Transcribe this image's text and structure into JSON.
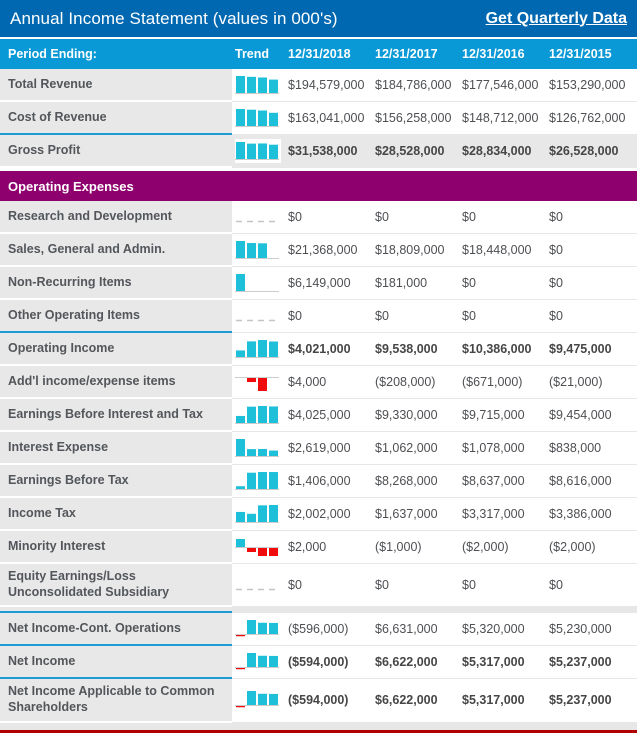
{
  "header": {
    "title": "Annual Income Statement (values in 000's)",
    "link_label": "Get Quarterly Data"
  },
  "table": {
    "period_ending_label": "Period Ending:",
    "trend_label": "Trend",
    "dates": [
      "12/31/2018",
      "12/31/2017",
      "12/31/2016",
      "12/31/2015"
    ],
    "rows": [
      {
        "type": "data",
        "label": "Total Revenue",
        "display": [
          "$194,579,000",
          "$184,786,000",
          "$177,546,000",
          "$153,290,000"
        ],
        "values": [
          194579000,
          184786000,
          177546000,
          153290000
        ],
        "bold": false,
        "gray": false,
        "boundary_after": false,
        "spacer_after": false
      },
      {
        "type": "data",
        "label": "Cost of Revenue",
        "display": [
          "$163,041,000",
          "$156,258,000",
          "$148,712,000",
          "$126,762,000"
        ],
        "values": [
          163041000,
          156258000,
          148712000,
          126762000
        ],
        "bold": false,
        "gray": false,
        "boundary_after": true,
        "spacer_after": false
      },
      {
        "type": "data",
        "label": "Gross Profit",
        "display": [
          "$31,538,000",
          "$28,528,000",
          "$28,834,000",
          "$26,528,000"
        ],
        "values": [
          31538000,
          28528000,
          28834000,
          26528000
        ],
        "bold": true,
        "gray": true,
        "boundary_after": false,
        "spacer_after": false
      },
      {
        "type": "section",
        "label": "Operating Expenses"
      },
      {
        "type": "data",
        "label": "Research and Development",
        "display": [
          "$0",
          "$0",
          "$0",
          "$0"
        ],
        "values": [
          0,
          0,
          0,
          0
        ],
        "bold": false,
        "gray": false,
        "boundary_after": false,
        "spacer_after": false
      },
      {
        "type": "data",
        "label": "Sales, General and Admin.",
        "display": [
          "$21,368,000",
          "$18,809,000",
          "$18,448,000",
          "$0"
        ],
        "values": [
          21368000,
          18809000,
          18448000,
          0
        ],
        "bold": false,
        "gray": false,
        "boundary_after": false,
        "spacer_after": false
      },
      {
        "type": "data",
        "label": "Non-Recurring Items",
        "display": [
          "$6,149,000",
          "$181,000",
          "$0",
          "$0"
        ],
        "values": [
          6149000,
          181000,
          0,
          0
        ],
        "bold": false,
        "gray": false,
        "boundary_after": false,
        "spacer_after": false
      },
      {
        "type": "data",
        "label": "Other Operating Items",
        "display": [
          "$0",
          "$0",
          "$0",
          "$0"
        ],
        "values": [
          0,
          0,
          0,
          0
        ],
        "bold": false,
        "gray": false,
        "boundary_after": true,
        "spacer_after": false
      },
      {
        "type": "data",
        "label": "Operating Income",
        "display": [
          "$4,021,000",
          "$9,538,000",
          "$10,386,000",
          "$9,475,000"
        ],
        "values": [
          4021000,
          9538000,
          10386000,
          9475000
        ],
        "bold": true,
        "gray": false,
        "boundary_after": false,
        "spacer_after": false
      },
      {
        "type": "data",
        "label": "Add'l income/expense items",
        "display": [
          "$4,000",
          "($208,000)",
          "($671,000)",
          "($21,000)"
        ],
        "values": [
          4000,
          -208000,
          -671000,
          -21000
        ],
        "bold": false,
        "gray": false,
        "boundary_after": false,
        "spacer_after": false
      },
      {
        "type": "data",
        "label": "Earnings Before Interest and Tax",
        "display": [
          "$4,025,000",
          "$9,330,000",
          "$9,715,000",
          "$9,454,000"
        ],
        "values": [
          4025000,
          9330000,
          9715000,
          9454000
        ],
        "bold": false,
        "gray": false,
        "boundary_after": false,
        "spacer_after": false
      },
      {
        "type": "data",
        "label": "Interest Expense",
        "display": [
          "$2,619,000",
          "$1,062,000",
          "$1,078,000",
          "$838,000"
        ],
        "values": [
          2619000,
          1062000,
          1078000,
          838000
        ],
        "bold": false,
        "gray": false,
        "boundary_after": false,
        "spacer_after": false
      },
      {
        "type": "data",
        "label": "Earnings Before Tax",
        "display": [
          "$1,406,000",
          "$8,268,000",
          "$8,637,000",
          "$8,616,000"
        ],
        "values": [
          1406000,
          8268000,
          8637000,
          8616000
        ],
        "bold": false,
        "gray": false,
        "boundary_after": false,
        "spacer_after": false
      },
      {
        "type": "data",
        "label": "Income Tax",
        "display": [
          "$2,002,000",
          "$1,637,000",
          "$3,317,000",
          "$3,386,000"
        ],
        "values": [
          2002000,
          1637000,
          3317000,
          3386000
        ],
        "bold": false,
        "gray": false,
        "boundary_after": false,
        "spacer_after": false
      },
      {
        "type": "data",
        "label": "Minority Interest",
        "display": [
          "$2,000",
          "($1,000)",
          "($2,000)",
          "($2,000)"
        ],
        "values": [
          2000,
          -1000,
          -2000,
          -2000
        ],
        "bold": false,
        "gray": false,
        "boundary_after": false,
        "spacer_after": false
      },
      {
        "type": "data",
        "label": "Equity Earnings/Loss Unconsolidated Subsidiary",
        "display": [
          "$0",
          "$0",
          "$0",
          "$0"
        ],
        "values": [
          0,
          0,
          0,
          0
        ],
        "bold": false,
        "gray": false,
        "boundary_after": false,
        "spacer_after": true
      },
      {
        "type": "data",
        "label": "Net Income-Cont. Operations",
        "display": [
          "($596,000)",
          "$6,631,000",
          "$5,320,000",
          "$5,230,000"
        ],
        "values": [
          -596000,
          6631000,
          5320000,
          5230000
        ],
        "bold": false,
        "gray": false,
        "boundary_after": true,
        "spacer_after": false
      },
      {
        "type": "data",
        "label": "Net Income",
        "display": [
          "($594,000)",
          "$6,622,000",
          "$5,317,000",
          "$5,237,000"
        ],
        "values": [
          -594000,
          6622000,
          5317000,
          5237000
        ],
        "bold": true,
        "gray": false,
        "boundary_after": true,
        "spacer_after": false
      },
      {
        "type": "data",
        "label": "Net Income Applicable to Common Shareholders",
        "display": [
          "($594,000)",
          "$6,622,000",
          "$5,317,000",
          "$5,237,000"
        ],
        "values": [
          -594000,
          6622000,
          5317000,
          5237000
        ],
        "bold": true,
        "gray": false,
        "boundary_after": false,
        "spacer_after": false
      }
    ]
  },
  "colors": {
    "titlebar": "#0067B1",
    "header": "#0999D6",
    "section": "#8E006E",
    "bar_positive": "#1EC0D9",
    "bar_negative": "#F00C0C",
    "boundary_line": "#1E9CD6",
    "label_bg": "#E8E8E8",
    "total_row_bg": "#E8E8E8",
    "bottom_line": "#B00000",
    "zero_dash": "#C4C4C4",
    "baseline": "#CCCCCC"
  }
}
